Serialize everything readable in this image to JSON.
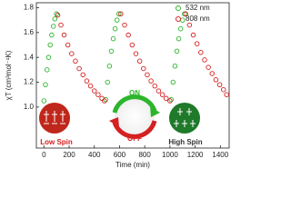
{
  "chart_data": {
    "type": "scatter",
    "xlabel": "Time (min)",
    "ylabel": "χT (cm³mol⁻¹K)",
    "xlim": [
      -60,
      1470
    ],
    "ylim": [
      0.67,
      1.84
    ],
    "xticks": [
      0,
      200,
      400,
      600,
      800,
      1000,
      1200,
      1400
    ],
    "yticks": [
      {
        "value": 1,
        "label": "1.0"
      },
      1.2,
      1.4,
      1.6,
      1.8
    ],
    "legend": "upper right",
    "series": [
      {
        "name": "532 nm",
        "color": "#2db52d",
        "x": [
          0,
          12,
          25,
          37,
          50,
          62,
          75,
          87,
          100,
          490,
          505,
          520,
          535,
          550,
          565,
          580,
          595,
          1010,
          1025,
          1040,
          1055,
          1070,
          1085,
          1100,
          1115
        ],
        "values": [
          1.05,
          1.18,
          1.3,
          1.4,
          1.5,
          1.58,
          1.65,
          1.71,
          1.75,
          1.06,
          1.2,
          1.33,
          1.45,
          1.55,
          1.63,
          1.7,
          1.75,
          1.06,
          1.2,
          1.33,
          1.45,
          1.55,
          1.63,
          1.7,
          1.75
        ]
      },
      {
        "name": "808 nm",
        "color": "#d42020",
        "x": [
          110,
          135,
          160,
          190,
          220,
          250,
          280,
          310,
          340,
          370,
          400,
          430,
          460,
          480,
          610,
          640,
          670,
          700,
          730,
          760,
          790,
          820,
          850,
          880,
          910,
          940,
          970,
          1000,
          1125,
          1155,
          1185,
          1215,
          1245,
          1275,
          1305,
          1335,
          1365,
          1395,
          1425,
          1450
        ],
        "values": [
          1.74,
          1.66,
          1.58,
          1.5,
          1.43,
          1.37,
          1.31,
          1.26,
          1.21,
          1.17,
          1.13,
          1.1,
          1.07,
          1.05,
          1.75,
          1.66,
          1.58,
          1.5,
          1.43,
          1.37,
          1.31,
          1.26,
          1.21,
          1.17,
          1.13,
          1.1,
          1.07,
          1.05,
          1.75,
          1.66,
          1.58,
          1.51,
          1.44,
          1.38,
          1.32,
          1.27,
          1.22,
          1.18,
          1.14,
          1.1
        ]
      }
    ],
    "annotations": {
      "on": "ON",
      "off": "OFF",
      "low_spin": "Low Spin",
      "high_spin": "High Spin"
    }
  }
}
